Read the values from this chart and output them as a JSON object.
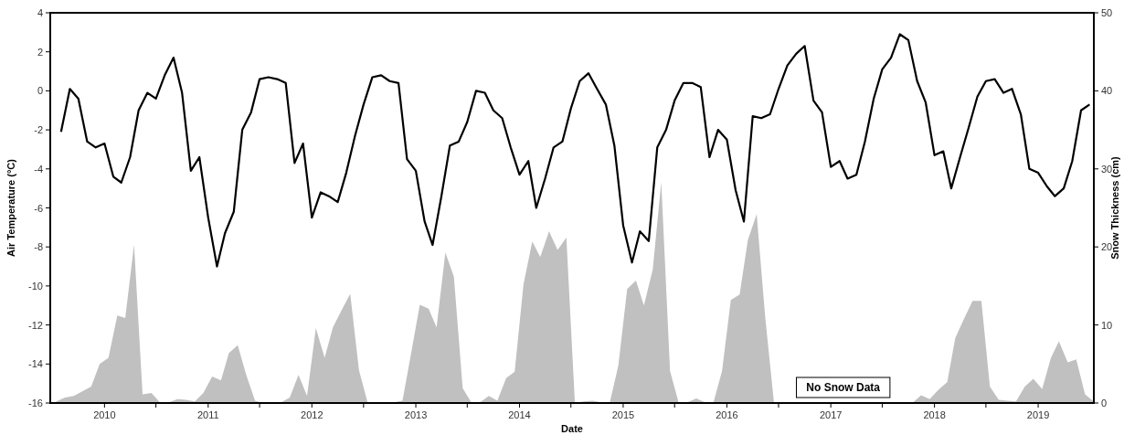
{
  "chart_data": {
    "type": "line",
    "xlabel": "Date",
    "ylabel": "Air Temperature (°C)",
    "y2label": "Snow Thickness (cm)",
    "xlim": [
      "2009-06-24",
      "2019-07-16"
    ],
    "xticks": [
      {
        "value": "2010",
        "label": "2010"
      },
      {
        "value": "2010-07",
        "label": null
      },
      {
        "value": "2011",
        "label": "2011"
      },
      {
        "value": "2011-07",
        "label": null
      },
      {
        "value": "2012",
        "label": "2012"
      },
      {
        "value": "2012-07",
        "label": null
      },
      {
        "value": "2013",
        "label": "2013"
      },
      {
        "value": "2013-07",
        "label": null
      },
      {
        "value": "2014",
        "label": "2014"
      },
      {
        "value": "2014-07",
        "label": null
      },
      {
        "value": "2015",
        "label": "2015"
      },
      {
        "value": "2015-07",
        "label": null
      },
      {
        "value": "2016",
        "label": "2016"
      },
      {
        "value": "2016-07",
        "label": null
      },
      {
        "value": "2017",
        "label": "2017"
      },
      {
        "value": "2017-07",
        "label": null
      },
      {
        "value": "2018",
        "label": "2018"
      },
      {
        "value": "2018-07",
        "label": null
      },
      {
        "value": "2019",
        "label": "2019"
      }
    ],
    "ylim": [
      -16,
      4
    ],
    "yticks": [
      -16,
      -14,
      -12,
      -10,
      -8,
      -6,
      -4,
      -2,
      0,
      2,
      4
    ],
    "y2lim": [
      0,
      50
    ],
    "y2ticks": [
      0,
      10,
      20,
      30,
      40,
      50
    ],
    "grid": false,
    "marker": "none",
    "line_style": "solid",
    "annotations": [
      "No Snow Data"
    ],
    "series": [
      {
        "type": "area",
        "axis": "y2",
        "color": "#c0c0c0",
        "x": [
          "2009-07-15",
          "2009-08-15",
          "2009-09-15",
          "2009-10-15",
          "2009-11-15",
          "2009-12-15",
          "2010-01-15",
          "2010-02-15",
          "2010-03-15",
          "2010-04-15",
          "2010-05-15",
          "2010-06-15",
          "2010-07-15",
          "2010-08-15",
          "2010-09-15",
          "2010-10-15",
          "2010-11-15",
          "2010-12-15",
          "2011-01-15",
          "2011-02-15",
          "2011-03-15",
          "2011-04-15",
          "2011-05-15",
          "2011-06-15",
          "2011-07-15",
          "2011-08-15",
          "2011-09-15",
          "2011-10-15",
          "2011-11-15",
          "2011-12-15",
          "2012-01-15",
          "2012-02-15",
          "2012-03-15",
          "2012-04-15",
          "2012-05-15",
          "2012-06-15",
          "2012-07-15",
          "2012-08-15",
          "2012-09-15",
          "2012-10-15",
          "2012-11-15",
          "2012-12-15",
          "2013-01-15",
          "2013-02-15",
          "2013-03-15",
          "2013-04-15",
          "2013-05-15",
          "2013-06-15",
          "2013-07-15",
          "2013-08-15",
          "2013-09-15",
          "2013-10-15",
          "2013-11-15",
          "2013-12-15",
          "2014-01-15",
          "2014-02-15",
          "2014-03-15",
          "2014-04-15",
          "2014-05-15",
          "2014-06-15",
          "2014-07-15",
          "2014-08-15",
          "2014-09-15",
          "2014-10-15",
          "2014-11-15",
          "2014-12-15",
          "2015-01-15",
          "2015-02-15",
          "2015-03-15",
          "2015-04-15",
          "2015-05-15",
          "2015-06-15",
          "2015-07-15",
          "2015-08-15",
          "2015-09-15",
          "2015-10-15",
          "2015-11-15",
          "2015-12-15",
          "2016-01-15",
          "2016-02-15",
          "2016-03-15",
          "2016-04-15",
          "2016-05-15",
          "2016-06-15",
          "2016-07-15",
          "2016-08-15",
          "2016-09-15",
          "2016-10-15",
          "2016-11-15",
          "2016-12-15",
          "2017-01-15",
          "2017-02-15",
          "2017-03-15",
          "2017-04-15",
          "2017-05-15",
          "2017-06-15",
          "2017-07-15",
          "2017-08-15",
          "2017-09-15",
          "2017-10-15",
          "2017-11-15",
          "2017-12-15",
          "2018-01-15",
          "2018-02-15",
          "2018-03-15",
          "2018-04-15",
          "2018-05-15",
          "2018-06-15",
          "2018-07-15",
          "2018-08-15",
          "2018-09-15",
          "2018-10-15",
          "2018-11-15",
          "2018-12-15",
          "2019-01-15",
          "2019-02-15",
          "2019-03-15",
          "2019-04-15",
          "2019-05-15",
          "2019-06-15",
          "2019-07-15"
        ],
        "values": [
          0.2,
          0.7,
          0.9,
          1.5,
          2.1,
          5.0,
          5.8,
          11.2,
          10.9,
          20.3,
          1.1,
          1.3,
          0.1,
          0.1,
          0.5,
          0.4,
          0.2,
          1.3,
          3.4,
          2.9,
          6.4,
          7.4,
          3.6,
          0.3,
          0,
          0,
          0.1,
          0.7,
          3.6,
          0.9,
          9.6,
          5.8,
          9.7,
          11.9,
          14.0,
          4.2,
          0.1,
          0,
          0,
          0.1,
          0.3,
          6.3,
          12.6,
          12.1,
          9.7,
          19.3,
          16.2,
          1.9,
          0.1,
          0.1,
          0.9,
          0.3,
          3.2,
          4.0,
          15.2,
          20.7,
          18.7,
          22.0,
          19.6,
          21.2,
          0,
          0.2,
          0.3,
          0.1,
          0.1,
          4.8,
          14.6,
          15.7,
          12.5,
          17.1,
          28.3,
          4.1,
          0.1,
          0.1,
          0.6,
          0.1,
          0.1,
          4.1,
          13.2,
          13.9,
          20.9,
          24.2,
          11,
          0,
          null,
          null,
          null,
          null,
          null,
          null,
          null,
          null,
          null,
          null,
          null,
          null,
          null,
          null,
          null,
          0,
          1.0,
          0.5,
          1.7,
          2.7,
          8.3,
          10.8,
          13.1,
          13.1,
          2.1,
          0.4,
          0.3,
          0.2,
          2.1,
          3.1,
          1.8,
          5.8,
          7.9,
          5.2,
          5.6,
          1.1,
          0.2
        ]
      },
      {
        "color": "#000000",
        "x": [
          "2009-08",
          "2009-09",
          "2009-10",
          "2009-11",
          "2009-12",
          "2010-01",
          "2010-02",
          "2010-03",
          "2010-04",
          "2010-05",
          "2010-06",
          "2010-07",
          "2010-08",
          "2010-09",
          "2010-10",
          "2010-11",
          "2010-12",
          "2011-01",
          "2011-02",
          "2011-03",
          "2011-04",
          "2011-05",
          "2011-06",
          "2011-07",
          "2011-08",
          "2011-09",
          "2011-10",
          "2011-11",
          "2011-12",
          "2012-01",
          "2012-02",
          "2012-03",
          "2012-04",
          "2012-05",
          "2012-06",
          "2012-07",
          "2012-08",
          "2012-09",
          "2012-10",
          "2012-11",
          "2012-12",
          "2013-01",
          "2013-02",
          "2013-03",
          "2013-04",
          "2013-05",
          "2013-06",
          "2013-07",
          "2013-08",
          "2013-09",
          "2013-10",
          "2013-11",
          "2013-12",
          "2014-01",
          "2014-02",
          "2014-03",
          "2014-04",
          "2014-05",
          "2014-06",
          "2014-07",
          "2014-08",
          "2014-09",
          "2014-10",
          "2014-11",
          "2014-12",
          "2015-01",
          "2015-02",
          "2015-03",
          "2015-04",
          "2015-05",
          "2015-06",
          "2015-07",
          "2015-08",
          "2015-09",
          "2015-10",
          "2015-11",
          "2015-12",
          "2016-01",
          "2016-02",
          "2016-03",
          "2016-04",
          "2016-05",
          "2016-06",
          "2016-07",
          "2016-08",
          "2016-09",
          "2016-10",
          "2016-11",
          "2016-12",
          "2017-01",
          "2017-02",
          "2017-03",
          "2017-04",
          "2017-05",
          "2017-06",
          "2017-07",
          "2017-08",
          "2017-09",
          "2017-10",
          "2017-11",
          "2017-12",
          "2018-01",
          "2018-02",
          "2018-03",
          "2018-04",
          "2018-05",
          "2018-06",
          "2018-07",
          "2018-08",
          "2018-09",
          "2018-10",
          "2018-11",
          "2018-12",
          "2019-01",
          "2019-02",
          "2019-03",
          "2019-04",
          "2019-05",
          "2019-06",
          "2019-07"
        ],
        "values": [
          -2.1,
          0.1,
          -0.4,
          -2.6,
          -2.9,
          -2.7,
          -4.4,
          -4.7,
          -3.4,
          -1.0,
          -0.1,
          -0.4,
          0.8,
          1.7,
          -0.1,
          -4.1,
          -3.4,
          -6.5,
          -9.0,
          -7.3,
          -6.2,
          -2.0,
          -1.1,
          0.6,
          0.7,
          0.6,
          0.4,
          -3.7,
          -2.7,
          -6.5,
          -5.2,
          -5.4,
          -5.7,
          -4.2,
          -2.3,
          -0.7,
          0.7,
          0.8,
          0.5,
          0.4,
          -3.5,
          -4.1,
          -6.7,
          -7.9,
          -5.4,
          -2.8,
          -2.6,
          -1.6,
          0.0,
          -0.1,
          -1.0,
          -1.4,
          -2.9,
          -4.3,
          -3.6,
          -6.0,
          -4.5,
          -2.9,
          -2.6,
          -0.9,
          0.5,
          0.9,
          0.1,
          -0.7,
          -2.8,
          -6.9,
          -8.8,
          -7.2,
          -7.7,
          -2.9,
          -2.0,
          -0.5,
          0.4,
          0.4,
          0.2,
          -3.4,
          -2.0,
          -2.5,
          -5.1,
          -6.7,
          -1.3,
          -1.4,
          -1.2,
          0.1,
          1.3,
          1.9,
          2.3,
          -0.5,
          -1.1,
          -3.9,
          -3.6,
          -4.5,
          -4.3,
          -2.6,
          -0.4,
          1.1,
          1.7,
          2.9,
          2.6,
          0.5,
          -0.6,
          -3.3,
          -3.1,
          -5.0,
          -3.4,
          -1.9,
          -0.3,
          0.5,
          0.6,
          -0.1,
          0.1,
          -1.2,
          -4.0,
          -4.2,
          -4.9,
          -5.4,
          -5.0,
          -3.6,
          -1.0,
          -0.7
        ]
      }
    ]
  }
}
